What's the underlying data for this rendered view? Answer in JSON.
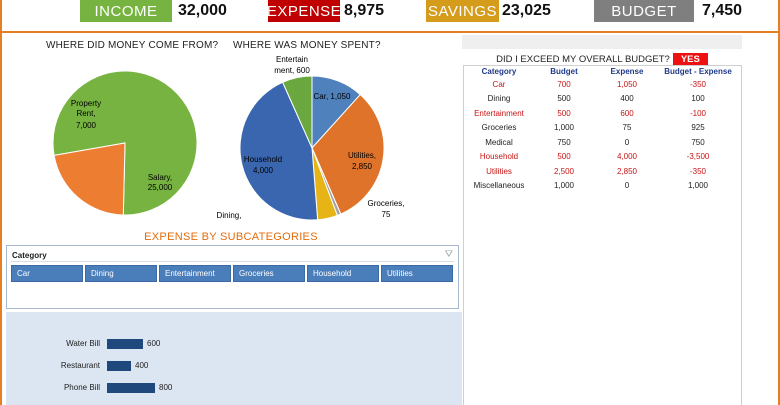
{
  "kpis": [
    {
      "label": "INCOME",
      "value": "32,000",
      "color": "#77b341"
    },
    {
      "label": "EXPENSE",
      "value": "8,975",
      "color": "#c00000"
    },
    {
      "label": "SAVINGS",
      "value": "23,025",
      "color": "#d59b1a"
    },
    {
      "label": "BUDGET",
      "value": "7,450",
      "color": "#7f7f7f"
    }
  ],
  "income_chart": {
    "title": "WHERE DID MONEY COME FROM?",
    "chart_data": {
      "type": "pie",
      "slices": [
        {
          "label": "Salary",
          "value": 25000,
          "color": "#77b341"
        },
        {
          "label": "Property Rent",
          "value": 7000,
          "color": "#ed7d31"
        }
      ]
    },
    "labels": {
      "salary_1": "Salary,",
      "salary_2": "25,000",
      "rent_1": "Property",
      "rent_2": "Rent,",
      "rent_3": "7,000"
    }
  },
  "expense_chart": {
    "title": "WHERE WAS MONEY SPENT?",
    "chart_data": {
      "type": "pie",
      "slices": [
        {
          "label": "Car",
          "value": 1050,
          "color": "#4f81bd"
        },
        {
          "label": "Utilities",
          "value": 2850,
          "color": "#e0732a"
        },
        {
          "label": "Groceries",
          "value": 75,
          "color": "#a5a5a5"
        },
        {
          "label": "Dining",
          "value": 400,
          "color": "#e6b416"
        },
        {
          "label": "Household",
          "value": 4000,
          "color": "#3a66b0"
        },
        {
          "label": "Entertainment",
          "value": 600,
          "color": "#6aa83f"
        }
      ]
    },
    "labels": {
      "ent_1": "Entertain",
      "ent_2": "ment, 600",
      "car": "Car, 1,050",
      "util_1": "Utilities,",
      "util_2": "2,850",
      "groc_1": "Groceries,",
      "groc_2": "75",
      "house_1": "Household",
      "house_2": "4,000",
      "dining": "Dining,"
    }
  },
  "budget": {
    "question": "DID I EXCEED MY OVERALL BUDGET?",
    "answer": "YES",
    "headers": [
      "Category",
      "Budget",
      "Expense",
      "Budget - Expense"
    ],
    "rows": [
      {
        "cells": [
          "Car",
          "700",
          "1,050",
          "-350"
        ],
        "over": true
      },
      {
        "cells": [
          "Dining",
          "500",
          "400",
          "100"
        ],
        "over": false
      },
      {
        "cells": [
          "Entertainment",
          "500",
          "600",
          "-100"
        ],
        "over": true
      },
      {
        "cells": [
          "Groceries",
          "1,000",
          "75",
          "925"
        ],
        "over": false
      },
      {
        "cells": [
          "Medical",
          "750",
          "0",
          "750"
        ],
        "over": false
      },
      {
        "cells": [
          "Household",
          "500",
          "4,000",
          "-3,500"
        ],
        "over": true
      },
      {
        "cells": [
          "Utilities",
          "2,500",
          "2,850",
          "-350"
        ],
        "over": true
      },
      {
        "cells": [
          "Miscellaneous",
          "1,000",
          "0",
          "1,000"
        ],
        "over": false
      }
    ]
  },
  "subcategories": {
    "title": "EXPENSE BY SUBCATEGORIES",
    "slicer_header": "Category",
    "buttons": [
      "Car",
      "Dining",
      "Entertainment",
      "Groceries",
      "Household",
      "Utilities"
    ],
    "chart_data": {
      "type": "bar",
      "categories": [
        "Water Bill",
        "Restaurant",
        "Phone Bill"
      ],
      "values": [
        600,
        400,
        800
      ]
    }
  }
}
